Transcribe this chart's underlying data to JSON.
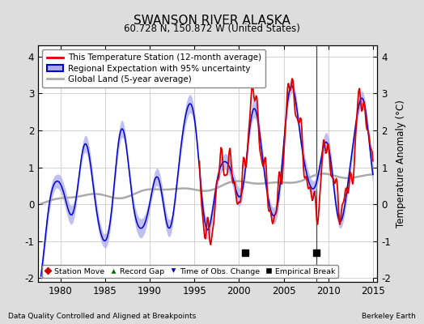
{
  "title": "SWANSON RIVER ALASKA",
  "subtitle": "60.728 N, 150.872 W (United States)",
  "ylabel": "Temperature Anomaly (°C)",
  "footer_left": "Data Quality Controlled and Aligned at Breakpoints",
  "footer_right": "Berkeley Earth",
  "xlim": [
    1977.5,
    2015.5
  ],
  "ylim": [
    -2.1,
    4.3
  ],
  "yticks": [
    -2,
    -1,
    0,
    1,
    2,
    3,
    4
  ],
  "xticks": [
    1980,
    1985,
    1990,
    1995,
    2000,
    2005,
    2010,
    2015
  ],
  "bg_color": "#dddddd",
  "plot_bg_color": "#ffffff",
  "empirical_break_times": [
    2000.7,
    2008.7
  ],
  "empirical_break_y": -1.32,
  "vertical_line_time": 2008.7,
  "red_line_color": "#dd0000",
  "blue_line_color": "#0000cc",
  "blue_fill_color": "#aaaaee",
  "gray_line_color": "#aaaaaa",
  "red_start_year": 1995.5,
  "legend_fontsize": 7.5,
  "tick_fontsize": 8.5
}
